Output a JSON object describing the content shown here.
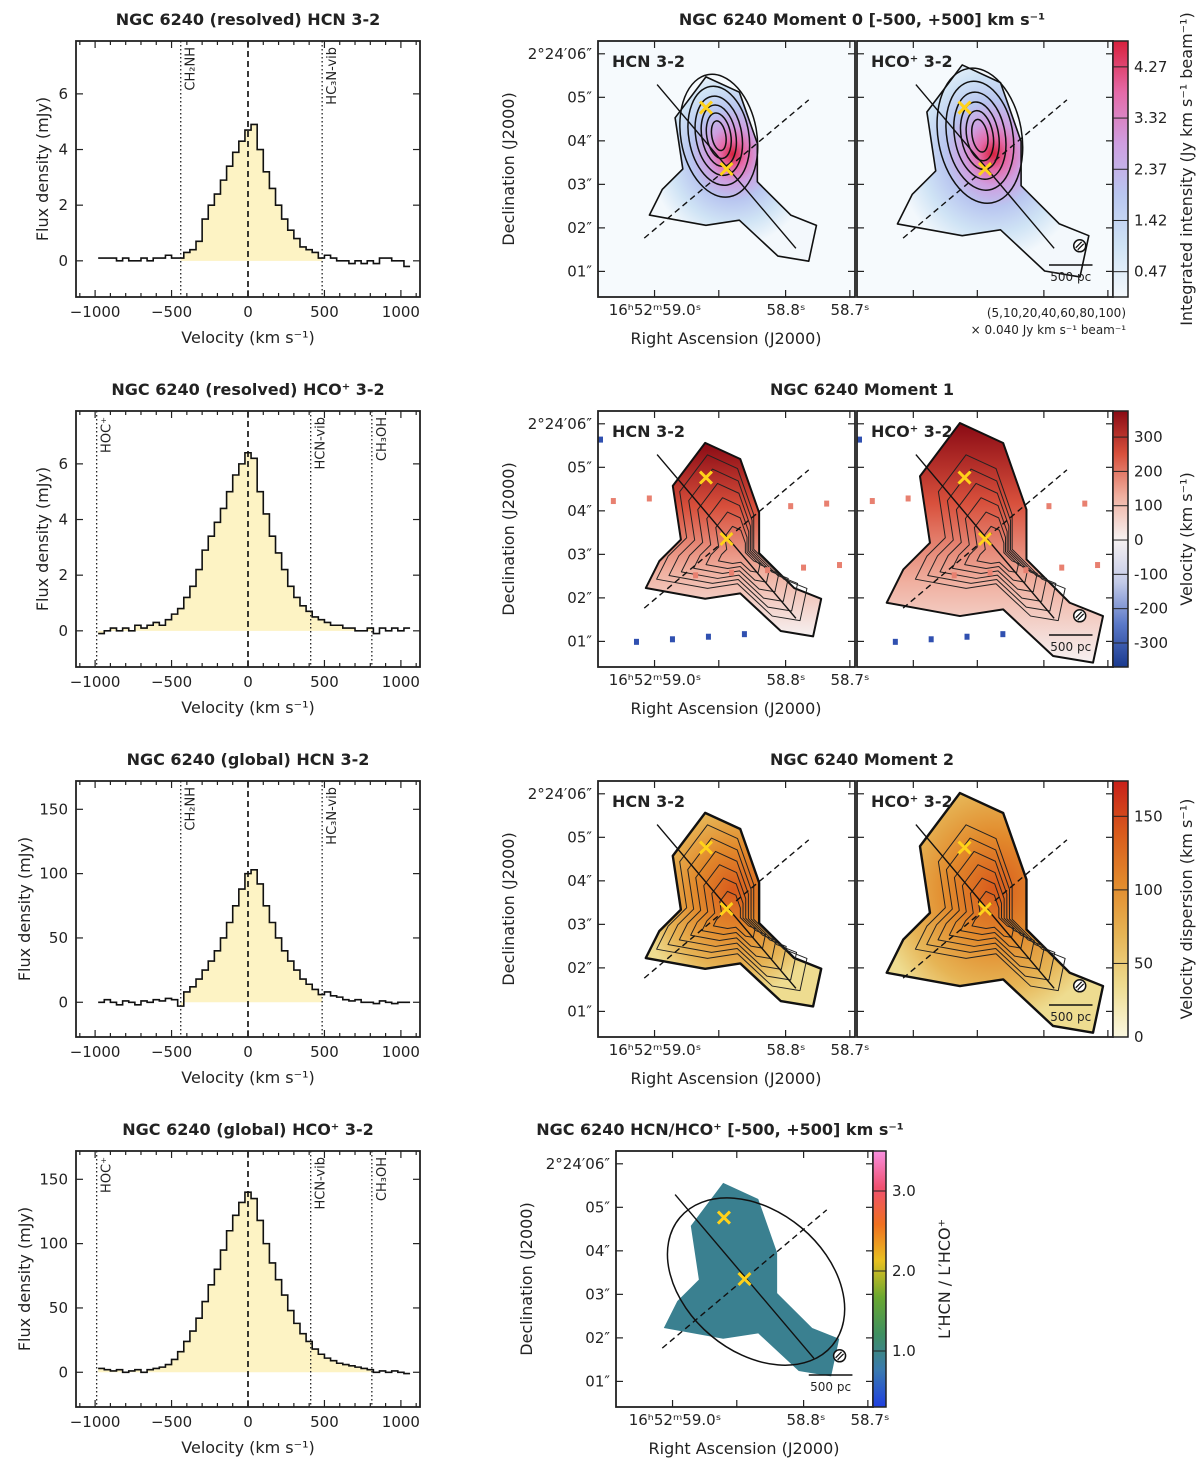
{
  "chart_data": [
    {
      "type": "line",
      "title": "NGC 6240  (resolved)  HCN 3-2",
      "xlabel": "Velocity (km s⁻¹)",
      "ylabel": "Flux density (mJy)",
      "xlim": [
        -1125,
        1125
      ],
      "ylim": [
        -1.3,
        7.9
      ],
      "xticks": [
        -1000,
        -500,
        0,
        500,
        1000
      ],
      "yticks": [
        0,
        2,
        4,
        6
      ],
      "vlines": [
        {
          "label": "CH₂NH",
          "v": -440,
          "style": "dotted"
        },
        {
          "label": "",
          "v": 0,
          "style": "dashed"
        },
        {
          "label": "HC₃N-vib",
          "v": 485,
          "style": "dotted"
        }
      ],
      "fill_range": [
        -440,
        485
      ],
      "x": [
        -960,
        -920,
        -880,
        -840,
        -800,
        -760,
        -720,
        -680,
        -640,
        -600,
        -560,
        -520,
        -480,
        -440,
        -400,
        -360,
        -320,
        -280,
        -240,
        -200,
        -160,
        -120,
        -80,
        -40,
        0,
        40,
        80,
        120,
        160,
        200,
        240,
        280,
        320,
        360,
        400,
        440,
        480,
        520,
        560,
        600,
        640,
        680,
        720,
        760,
        800,
        840,
        880,
        920,
        960,
        1000,
        1040
      ],
      "y": [
        0.1,
        0.1,
        0.1,
        0.0,
        0.1,
        0.0,
        0.0,
        0.1,
        0.0,
        0.1,
        0.1,
        0.2,
        0.1,
        0.1,
        0.3,
        0.4,
        0.7,
        1.5,
        2.0,
        2.4,
        2.9,
        3.4,
        3.9,
        4.3,
        4.7,
        4.9,
        4.0,
        3.2,
        2.6,
        2.0,
        1.5,
        1.1,
        0.8,
        0.5,
        0.4,
        0.3,
        0.1,
        0.2,
        0.1,
        0.0,
        0.0,
        -0.1,
        0.0,
        -0.1,
        0.0,
        -0.1,
        0.1,
        0.1,
        0.0,
        0.0,
        -0.2
      ]
    },
    {
      "type": "line",
      "title": "NGC 6240  (resolved)  HCO⁺ 3-2",
      "xlabel": "Velocity (km s⁻¹)",
      "ylabel": "Flux density (mJy)",
      "xlim": [
        -1125,
        1125
      ],
      "ylim": [
        -1.3,
        7.9
      ],
      "xticks": [
        -1000,
        -500,
        0,
        500,
        1000
      ],
      "yticks": [
        0,
        2,
        4,
        6
      ],
      "vlines": [
        {
          "label": "HOC⁺",
          "v": -990,
          "style": "dotted"
        },
        {
          "label": "",
          "v": 0,
          "style": "dashed"
        },
        {
          "label": "HCN-vib",
          "v": 410,
          "style": "dotted"
        },
        {
          "label": "CH₃OH",
          "v": 810,
          "style": "dotted"
        }
      ],
      "fill_range": [
        -990,
        810
      ],
      "x": [
        -960,
        -920,
        -880,
        -840,
        -800,
        -760,
        -720,
        -680,
        -640,
        -600,
        -560,
        -520,
        -480,
        -440,
        -400,
        -360,
        -320,
        -280,
        -240,
        -200,
        -160,
        -120,
        -80,
        -40,
        0,
        40,
        80,
        120,
        160,
        200,
        240,
        280,
        320,
        360,
        400,
        440,
        480,
        520,
        560,
        600,
        640,
        680,
        720,
        760,
        800,
        840,
        880,
        920,
        960,
        1000,
        1040
      ],
      "y": [
        -0.1,
        0.0,
        0.1,
        0.0,
        0.1,
        0.0,
        0.2,
        0.1,
        0.2,
        0.3,
        0.2,
        0.4,
        0.6,
        0.8,
        1.2,
        1.6,
        2.2,
        2.9,
        3.4,
        3.9,
        4.4,
        5.0,
        5.6,
        6.0,
        6.4,
        6.2,
        5.0,
        4.2,
        3.4,
        2.8,
        2.2,
        1.6,
        1.2,
        0.9,
        0.7,
        0.5,
        0.4,
        0.3,
        0.2,
        0.2,
        0.1,
        0.1,
        0.0,
        0.0,
        0.1,
        -0.1,
        0.1,
        0.0,
        0.1,
        0.0,
        0.1
      ]
    },
    {
      "type": "line",
      "title": "NGC 6240  (global)  HCN 3-2",
      "xlabel": "Velocity (km s⁻¹)",
      "ylabel": "Flux density (mJy)",
      "xlim": [
        -1125,
        1125
      ],
      "ylim": [
        -27,
        172
      ],
      "xticks": [
        -1000,
        -500,
        0,
        500,
        1000
      ],
      "yticks": [
        0,
        50,
        100,
        150
      ],
      "vlines": [
        {
          "label": "CH₂NH",
          "v": -440,
          "style": "dotted"
        },
        {
          "label": "",
          "v": 0,
          "style": "dashed"
        },
        {
          "label": "HC₃N-vib",
          "v": 485,
          "style": "dotted"
        }
      ],
      "fill_range": [
        -440,
        485
      ],
      "x": [
        -960,
        -920,
        -880,
        -840,
        -800,
        -760,
        -720,
        -680,
        -640,
        -600,
        -560,
        -520,
        -480,
        -440,
        -400,
        -360,
        -320,
        -280,
        -240,
        -200,
        -160,
        -120,
        -80,
        -40,
        0,
        40,
        80,
        120,
        160,
        200,
        240,
        280,
        320,
        360,
        400,
        440,
        480,
        520,
        560,
        600,
        640,
        680,
        720,
        760,
        800,
        840,
        880,
        920,
        960,
        1000,
        1040
      ],
      "y": [
        0,
        2,
        0,
        -2,
        1,
        0,
        -2,
        1,
        0,
        2,
        1,
        3,
        2,
        -3,
        8,
        12,
        18,
        25,
        32,
        40,
        50,
        62,
        75,
        88,
        100,
        103,
        92,
        75,
        62,
        50,
        40,
        32,
        25,
        18,
        14,
        10,
        6,
        8,
        5,
        4,
        2,
        1,
        2,
        0,
        0,
        -1,
        1,
        0,
        -1,
        0,
        0
      ]
    },
    {
      "type": "line",
      "title": "NGC 6240  (global)  HCO⁺ 3-2",
      "xlabel": "Velocity (km s⁻¹)",
      "ylabel": "Flux density (mJy)",
      "xlim": [
        -1125,
        1125
      ],
      "ylim": [
        -27,
        172
      ],
      "xticks": [
        -1000,
        -500,
        0,
        500,
        1000
      ],
      "yticks": [
        0,
        50,
        100,
        150
      ],
      "vlines": [
        {
          "label": "HOC⁺",
          "v": -990,
          "style": "dotted"
        },
        {
          "label": "",
          "v": 0,
          "style": "dashed"
        },
        {
          "label": "HCN-vib",
          "v": 410,
          "style": "dotted"
        },
        {
          "label": "CH₃OH",
          "v": 810,
          "style": "dotted"
        }
      ],
      "fill_range": [
        -990,
        810
      ],
      "x": [
        -960,
        -920,
        -880,
        -840,
        -800,
        -760,
        -720,
        -680,
        -640,
        -600,
        -560,
        -520,
        -480,
        -440,
        -400,
        -360,
        -320,
        -280,
        -240,
        -200,
        -160,
        -120,
        -80,
        -40,
        0,
        40,
        80,
        120,
        160,
        200,
        240,
        280,
        320,
        360,
        400,
        440,
        480,
        520,
        560,
        600,
        640,
        680,
        720,
        760,
        800,
        840,
        880,
        920,
        960,
        1000,
        1040
      ],
      "y": [
        3,
        2,
        1,
        2,
        0,
        1,
        2,
        0,
        2,
        3,
        4,
        6,
        10,
        16,
        24,
        32,
        42,
        55,
        68,
        80,
        95,
        110,
        122,
        132,
        140,
        135,
        118,
        100,
        85,
        72,
        60,
        48,
        38,
        30,
        24,
        18,
        14,
        11,
        9,
        7,
        6,
        5,
        4,
        3,
        2,
        0,
        1,
        0,
        1,
        0,
        -1
      ]
    }
  ],
  "maps": [
    {
      "kind": "mom0",
      "title": "NGC 6240  Moment 0  [-500, +500] km s⁻¹",
      "panels": [
        "HCN 3-2",
        "HCO⁺ 3-2"
      ],
      "ylabel": "Declination (J2000)",
      "xlabel": "Right Ascension (J2000)",
      "yticklabels": [
        "2°24′06″",
        "05″",
        "04″",
        "03″",
        "02″",
        "01″"
      ],
      "xticklabels": [
        "16ʰ52ᵐ59.0ˢ",
        "58.8ˢ",
        "58.7ˢ"
      ],
      "scalebar": "500 pc",
      "contour_levels": "(5,10,20,40,60,80,100)",
      "contour_unit": "× 0.040 Jy km s⁻¹ beam⁻¹",
      "colorbar": {
        "label": "Integrated intensity (Jy km s⁻¹ beam⁻¹)",
        "range": [
          0,
          4.75
        ],
        "ticks": [
          0.47,
          1.42,
          2.37,
          3.32,
          4.27
        ],
        "tick_labels": [
          "0.47",
          "1.42",
          "2.37",
          "3.32",
          "4.27"
        ],
        "colors": [
          "#f3f8fc",
          "#cfe3f5",
          "#b9c6f0",
          "#cf9ee0",
          "#e56aa8",
          "#d8203c"
        ]
      }
    },
    {
      "kind": "mom1",
      "title": "NGC 6240  Moment 1",
      "panels": [
        "HCN 3-2",
        "HCO⁺ 3-2"
      ],
      "ylabel": "Declination (J2000)",
      "xlabel": "Right Ascension (J2000)",
      "yticklabels": [
        "2°24′06″",
        "05″",
        "04″",
        "03″",
        "02″",
        "01″"
      ],
      "xticklabels": [
        "16ʰ52ᵐ59.0ˢ",
        "58.8ˢ",
        "58.7ˢ"
      ],
      "scalebar": "500 pc",
      "colorbar": {
        "label": "Velocity (km s⁻¹)",
        "range": [
          -370,
          376
        ],
        "ticks": [
          300,
          200,
          100,
          0,
          -100,
          -200,
          -300
        ],
        "tick_labels": [
          "300",
          "200",
          "100",
          "0",
          "-100",
          "-200",
          "-300"
        ],
        "colors": [
          "#1a3a8f",
          "#5a78c8",
          "#c4cbe8",
          "#f6f1f1",
          "#f0b0a0",
          "#d8503c",
          "#8a0a14"
        ]
      }
    },
    {
      "kind": "mom2",
      "title": "NGC 6240  Moment 2",
      "panels": [
        "HCN 3-2",
        "HCO⁺ 3-2"
      ],
      "ylabel": "Declination (J2000)",
      "xlabel": "Right Ascension (J2000)",
      "yticklabels": [
        "2°24′06″",
        "05″",
        "04″",
        "03″",
        "02″",
        "01″"
      ],
      "xticklabels": [
        "16ʰ52ᵐ59.0ˢ",
        "58.8ˢ",
        "58.7ˢ"
      ],
      "scalebar": "500 pc",
      "colorbar": {
        "label": "Velocity dispersion (km s⁻¹)",
        "range": [
          0,
          174
        ],
        "ticks": [
          0,
          50,
          100,
          150
        ],
        "tick_labels": [
          "0",
          "50",
          "100",
          "150"
        ],
        "colors": [
          "#fbf8e0",
          "#eedc90",
          "#e6b455",
          "#e28a2c",
          "#d85a1c",
          "#c8201a"
        ]
      }
    },
    {
      "kind": "ratio",
      "title": "NGC 6240  HCN/HCO⁺  [-500, +500] km s⁻¹",
      "panels": [
        ""
      ],
      "ylabel": "Declination (J2000)",
      "xlabel": "Right Ascension (J2000)",
      "yticklabels": [
        "2°24′06″",
        "05″",
        "04″",
        "03″",
        "02″",
        "01″"
      ],
      "xticklabels": [
        "16ʰ52ᵐ59.0ˢ",
        "58.8ˢ",
        "58.7ˢ"
      ],
      "scalebar": "500 pc",
      "colorbar": {
        "label": "L′HCN / L′HCO⁺",
        "range": [
          0.3,
          3.5
        ],
        "ticks": [
          1.0,
          2.0,
          3.0
        ],
        "tick_labels": [
          "1.0",
          "2.0",
          "3.0"
        ],
        "colors": [
          "#1f3fe0",
          "#3a7ab0",
          "#3f9060",
          "#6aa830",
          "#e8c020",
          "#f07020",
          "#f05070",
          "#f890e0"
        ]
      }
    }
  ],
  "colors": {
    "fill": "#fdf3c4",
    "marker": "#ffd21a",
    "axis": "#222222"
  }
}
